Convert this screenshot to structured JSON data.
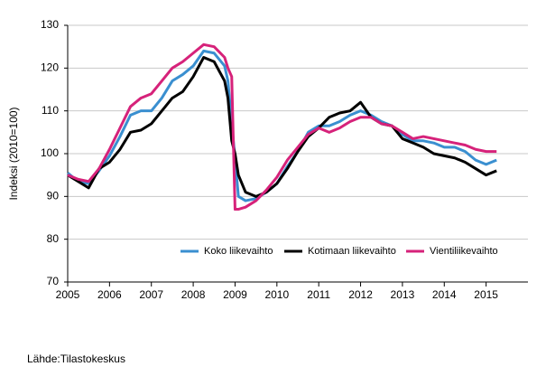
{
  "chart_data": {
    "type": "line",
    "y_label": "Indeksi (2010=100)",
    "source": "Lähde:Tilastokeskus",
    "x": [
      2005,
      2005.25,
      2005.5,
      2005.75,
      2006,
      2006.25,
      2006.5,
      2006.75,
      2007,
      2007.25,
      2007.5,
      2007.75,
      2008,
      2008.25,
      2008.5,
      2008.75,
      2008.83,
      2008.92,
      2009,
      2009.08,
      2009.25,
      2009.5,
      2009.75,
      2010,
      2010.25,
      2010.5,
      2010.75,
      2011,
      2011.25,
      2011.5,
      2011.75,
      2012,
      2012.25,
      2012.5,
      2012.75,
      2013,
      2013.25,
      2013.5,
      2013.75,
      2014,
      2014.25,
      2014.5,
      2014.75,
      2015,
      2015.25
    ],
    "series": [
      {
        "name": "Koko liikevaihto",
        "color": "#3a8fd0",
        "values": [
          95.5,
          93.5,
          93,
          96,
          99.5,
          104,
          109,
          110,
          110,
          113,
          117,
          118.5,
          120.5,
          124,
          123.5,
          120.5,
          117,
          107,
          99,
          90,
          89,
          89.5,
          91,
          93,
          97,
          100.5,
          105,
          106.5,
          106.5,
          107.5,
          109,
          110,
          109,
          107.5,
          106.5,
          104.5,
          103,
          103,
          102.5,
          101.5,
          101.5,
          100.5,
          98.5,
          97.5,
          98.5
        ]
      },
      {
        "name": "Kotimaan liikevaihto",
        "color": "#000000",
        "values": [
          95,
          93.5,
          92,
          96.5,
          98,
          101,
          105,
          105.5,
          107,
          110,
          113,
          114.5,
          118,
          122.5,
          121.5,
          117,
          113,
          103,
          100,
          95,
          91,
          90,
          91,
          93,
          96.5,
          100.5,
          104,
          106,
          108.5,
          109.5,
          110,
          112,
          108.5,
          107,
          106.5,
          103.5,
          102.5,
          101.5,
          100,
          99.5,
          99,
          98,
          96.5,
          95,
          96
        ]
      },
      {
        "name": "Vientiliikevaihto",
        "color": "#d6227a",
        "values": [
          95,
          94,
          93.5,
          96.5,
          101,
          106,
          111,
          113,
          114,
          117,
          120,
          121.5,
          123.5,
          125.5,
          125,
          122.5,
          120,
          118,
          87,
          87,
          87.5,
          89,
          91.5,
          94.5,
          98.5,
          101.5,
          104.5,
          106,
          105,
          106,
          107.5,
          108.5,
          108.5,
          107,
          106.5,
          105,
          103.5,
          104,
          103.5,
          103,
          102.5,
          102,
          101,
          100.5,
          100.5
        ]
      }
    ],
    "xlim": [
      2005,
      2016
    ],
    "xticks": [
      2005,
      2006,
      2007,
      2008,
      2009,
      2010,
      2011,
      2012,
      2013,
      2014,
      2015
    ],
    "ylim": [
      70,
      130
    ],
    "yticks": [
      70,
      80,
      90,
      100,
      110,
      120,
      130
    ],
    "grid": true
  }
}
